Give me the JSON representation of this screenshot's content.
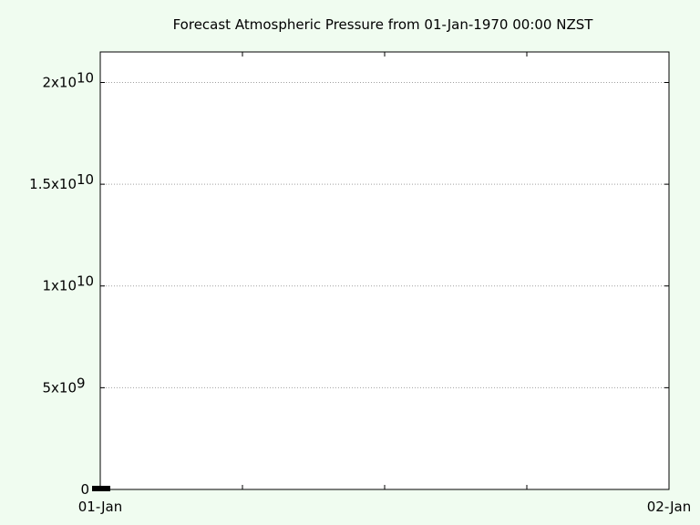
{
  "chart_data": {
    "type": "line",
    "title": "Forecast Atmospheric Pressure from  01-Jan-1970 00:00 NZST",
    "xlabel": "",
    "ylabel": "",
    "x_tick_labels": [
      "01-Jan",
      "02-Jan"
    ],
    "y_ticks": [
      {
        "value": 0,
        "mantissa": "0",
        "exponent": ""
      },
      {
        "value": 5000000000,
        "mantissa": "5x10",
        "exponent": "9"
      },
      {
        "value": 10000000000,
        "mantissa": "1x10",
        "exponent": "10"
      },
      {
        "value": 15000000000,
        "mantissa": "1.5x10",
        "exponent": "10"
      },
      {
        "value": 20000000000,
        "mantissa": "2x10",
        "exponent": "10"
      }
    ],
    "ylim": [
      0,
      21500000000
    ],
    "xlim": [
      "01-Jan",
      "02-Jan"
    ],
    "grid": "horizontal dotted",
    "colors": {
      "background": "#f0fcf0",
      "plot_background": "#ffffff",
      "axis": "#000000",
      "grid": "#a0a0a0"
    }
  }
}
